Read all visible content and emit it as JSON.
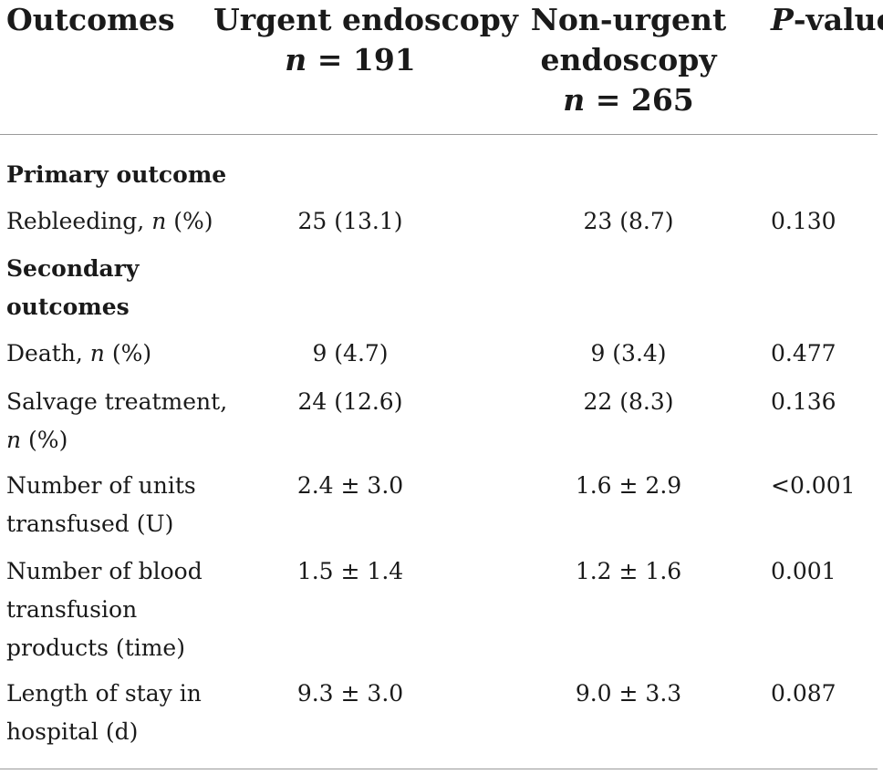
{
  "header": {
    "outcomes": "Outcomes",
    "urgent_line1": "Urgent endoscopy",
    "urgent_n_var": "n",
    "urgent_n_val": " = 191",
    "nonurgent_line1": "Non-urgent",
    "nonurgent_line2": "endoscopy",
    "nonurgent_n_var": "n",
    "nonurgent_n_val": " = 265",
    "pvalue_var": "P",
    "pvalue_rest": "-value"
  },
  "sections": {
    "primary": "Primary outcome",
    "secondary_line1": "Secondary",
    "secondary_line2": "outcomes"
  },
  "rows": {
    "rebleeding": {
      "label": "Rebleeding, ",
      "label_n": "n",
      "label_pct": " (%)",
      "urgent": "25 (13.1)",
      "nonurgent": "23 (8.7)",
      "p": "0.130"
    },
    "death": {
      "label": "Death, ",
      "label_n": "n",
      "label_pct": " (%)",
      "urgent": "9 (4.7)",
      "nonurgent": "9 (3.4)",
      "p": "0.477"
    },
    "salvage": {
      "label_line1": "Salvage treatment,",
      "label_n": "n",
      "label_pct": " (%)",
      "urgent": "24 (12.6)",
      "nonurgent": "22 (8.3)",
      "p": "0.136"
    },
    "units": {
      "label_line1": "Number of units",
      "label_line2": "transfused (U)",
      "urgent": "2.4 ± 3.0",
      "nonurgent": "1.6 ± 2.9",
      "p": "<0.001"
    },
    "blood_products": {
      "label_line1": "Number of blood",
      "label_line2": "transfusion",
      "label_line3": "products (time)",
      "urgent": "1.5 ± 1.4",
      "nonurgent": "1.2 ± 1.6",
      "p": "0.001"
    },
    "stay": {
      "label_line1": "Length of stay in",
      "label_line2": "hospital (d)",
      "urgent": "9.3 ± 3.0",
      "nonurgent": "9.0 ± 3.3",
      "p": "0.087"
    }
  }
}
